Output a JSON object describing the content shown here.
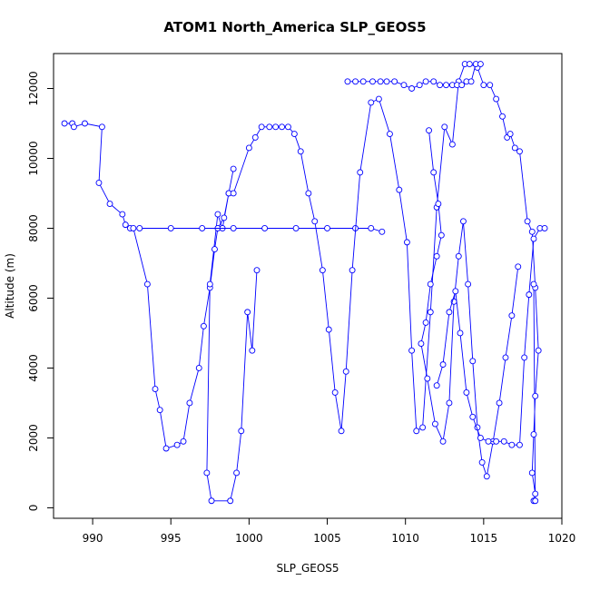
{
  "chart_data": {
    "type": "line",
    "title": "ATOM1 North_America SLP_GEOS5",
    "xlabel": "SLP_GEOS5",
    "ylabel": "Altitude (m)",
    "xlim": [
      987.5,
      1020.0
    ],
    "ylim": [
      -300,
      13000
    ],
    "xticks": [
      990,
      995,
      1000,
      1005,
      1010,
      1015,
      1020
    ],
    "yticks": [
      0,
      2000,
      4000,
      6000,
      8000,
      10000,
      12000
    ],
    "grid": false,
    "legend": "none",
    "series": [
      {
        "color": "#0000ff",
        "marker": "open-circle",
        "x": [
          988.2,
          988.7,
          988.8,
          989.5,
          990.6,
          990.4,
          991.1,
          991.9,
          992.1,
          992.4,
          992.6,
          993.5,
          994.0,
          994.3,
          994.7,
          995.4,
          995.8,
          996.2,
          996.8,
          997.1,
          997.5,
          997.8,
          998.0,
          998.4,
          998.7,
          999.0,
          998.7,
          998.3,
          998.0,
          997.5,
          997.3,
          997.6,
          998.8,
          999.2,
          999.5,
          999.9,
          1000.2,
          1000.5
        ],
        "y": [
          11000,
          11000,
          10900,
          11000,
          10900,
          9300,
          8700,
          8400,
          8100,
          8000,
          8000,
          6400,
          3400,
          2800,
          1700,
          1800,
          1900,
          3000,
          4000,
          5200,
          6300,
          7400,
          8000,
          8300,
          9000,
          9700,
          9000,
          8000,
          8400,
          6400,
          1000,
          200,
          200,
          1000,
          2200,
          5600,
          4500,
          6800
        ]
      },
      {
        "color": "#0000ff",
        "marker": "open-circle",
        "x": [
          993.0,
          995.0,
          997.0,
          999.0,
          1001.0,
          1003.0,
          1005.0,
          1006.8,
          1007.8,
          1008.5
        ],
        "y": [
          8000,
          8000,
          8000,
          8000,
          8000,
          8000,
          8000,
          8000,
          8000,
          7900
        ]
      },
      {
        "color": "#0000ff",
        "marker": "open-circle",
        "x": [
          999.0,
          1000.0,
          1000.4,
          1000.8,
          1001.3,
          1001.7,
          1002.1,
          1002.5,
          1002.9,
          1003.3,
          1003.8,
          1004.2,
          1004.7,
          1005.1,
          1005.5,
          1005.9,
          1006.2,
          1006.6,
          1007.1,
          1007.8,
          1008.3,
          1009.0,
          1009.6,
          1010.1,
          1010.4,
          1010.7,
          1011.1,
          1011.6,
          1012.0,
          1012.5,
          1013.0,
          1013.4,
          1013.8,
          1014.1,
          1014.6,
          1015.0,
          1015.4,
          1015.8,
          1016.2,
          1016.5,
          1016.7,
          1017.0,
          1017.3,
          1017.8,
          1018.1,
          1018.3,
          1018.5,
          1018.3,
          1018.2,
          1018.1,
          1018.3,
          1018.2,
          1018.3,
          1018.2
        ],
        "y": [
          9000,
          10300,
          10600,
          10900,
          10900,
          10900,
          10900,
          10900,
          10700,
          10200,
          9000,
          8200,
          6800,
          5100,
          3300,
          2200,
          3900,
          6800,
          9600,
          11600,
          11700,
          10700,
          9100,
          7600,
          4500,
          2200,
          2300,
          5600,
          8600,
          10900,
          10400,
          12200,
          12700,
          12700,
          12600,
          12100,
          12100,
          11700,
          11200,
          10600,
          10700,
          10300,
          10200,
          8200,
          7900,
          6300,
          4500,
          3200,
          2100,
          1000,
          400,
          200,
          200,
          6400
        ]
      },
      {
        "color": "#0000ff",
        "marker": "open-circle",
        "x": [
          1006.3,
          1006.8,
          1007.3,
          1007.9,
          1008.4,
          1008.8,
          1009.3,
          1009.9,
          1010.4,
          1010.9,
          1011.3,
          1011.8,
          1012.2,
          1012.6,
          1013.0,
          1013.3,
          1013.6,
          1013.9,
          1014.2,
          1014.5,
          1014.8
        ],
        "y": [
          12200,
          12200,
          12200,
          12200,
          12200,
          12200,
          12200,
          12100,
          12000,
          12100,
          12200,
          12200,
          12100,
          12100,
          12100,
          12100,
          12100,
          12200,
          12200,
          12700,
          12700
        ]
      },
      {
        "color": "#0000ff",
        "marker": "open-circle",
        "x": [
          1011.5,
          1011.8,
          1012.1,
          1012.3,
          1012.0,
          1011.6,
          1011.3,
          1011.0,
          1011.4,
          1011.9,
          1012.4,
          1012.8,
          1013.1,
          1013.4,
          1013.7,
          1014.0,
          1014.3,
          1014.6,
          1014.9,
          1015.2,
          1015.6,
          1016.0,
          1016.4,
          1016.8,
          1017.2
        ],
        "y": [
          10800,
          9600,
          8700,
          7800,
          7200,
          6400,
          5300,
          4700,
          3700,
          2400,
          1900,
          3000,
          5900,
          7200,
          8200,
          6400,
          4200,
          2300,
          1300,
          900,
          1900,
          3000,
          4300,
          5500,
          6900
        ]
      },
      {
        "color": "#0000ff",
        "marker": "open-circle",
        "x": [
          1012.0,
          1012.4,
          1012.8,
          1013.2,
          1013.5,
          1013.9,
          1014.3,
          1014.8,
          1015.3,
          1015.8,
          1016.3,
          1016.8,
          1017.3,
          1017.6,
          1017.9,
          1018.2,
          1018.6,
          1018.9
        ],
        "y": [
          3500,
          4100,
          5600,
          6200,
          5000,
          3300,
          2600,
          2000,
          1900,
          1900,
          1900,
          1800,
          1800,
          4300,
          6100,
          7700,
          8000,
          8000
        ]
      }
    ]
  }
}
